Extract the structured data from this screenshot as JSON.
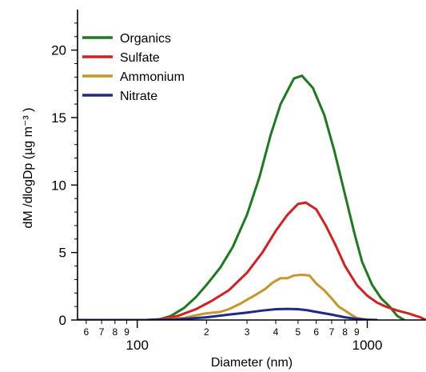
{
  "chart_data": {
    "type": "line",
    "title": "",
    "xlabel": "Diameter (nm)",
    "ylabel": "dM /dlogDp (µg m⁻³ )",
    "xscale": "log",
    "xlim": [
      55,
      1800
    ],
    "ylim": [
      0,
      23
    ],
    "yticks": [
      0,
      5,
      10,
      15,
      20
    ],
    "xticks_major": [
      {
        "value": 100,
        "label": "100"
      },
      {
        "value": 1000,
        "label": "1000"
      }
    ],
    "xticks_minor": [
      {
        "value": 60,
        "label": "6"
      },
      {
        "value": 70,
        "label": "7"
      },
      {
        "value": 80,
        "label": "8"
      },
      {
        "value": 90,
        "label": "9"
      },
      {
        "value": 200,
        "label": "2"
      },
      {
        "value": 300,
        "label": "3"
      },
      {
        "value": 400,
        "label": "4"
      },
      {
        "value": 500,
        "label": "5"
      },
      {
        "value": 600,
        "label": "6"
      },
      {
        "value": 700,
        "label": "7"
      },
      {
        "value": 800,
        "label": "8"
      },
      {
        "value": 900,
        "label": "9"
      }
    ],
    "grid": false,
    "legend_position": "top-left",
    "series": [
      {
        "name": "Organics",
        "color": "#1e7a1e",
        "x": [
          55,
          95,
          110,
          125,
          140,
          160,
          180,
          200,
          230,
          260,
          300,
          340,
          380,
          420,
          460,
          480,
          520,
          580,
          650,
          720,
          800,
          880,
          950,
          1050,
          1150,
          1250,
          1350,
          1450
        ],
        "y": [
          0,
          0,
          0,
          0.05,
          0.3,
          0.9,
          1.7,
          2.6,
          3.9,
          5.4,
          7.8,
          10.6,
          13.7,
          16.0,
          17.3,
          17.9,
          18.1,
          17.2,
          15.2,
          12.5,
          9.3,
          6.4,
          4.3,
          2.6,
          1.6,
          1.0,
          0.3,
          0
        ]
      },
      {
        "name": "Sulfate",
        "color": "#d61f1f",
        "x": [
          55,
          95,
          110,
          125,
          150,
          180,
          210,
          250,
          300,
          350,
          400,
          450,
          500,
          540,
          600,
          660,
          730,
          800,
          900,
          1000,
          1100,
          1200,
          1350,
          1500,
          1700,
          1800
        ],
        "y": [
          0,
          0,
          0,
          0.05,
          0.3,
          0.8,
          1.4,
          2.2,
          3.5,
          5.0,
          6.6,
          7.8,
          8.6,
          8.7,
          8.2,
          7.0,
          5.5,
          4.0,
          2.6,
          1.8,
          1.3,
          1.0,
          0.7,
          0.5,
          0.2,
          0
        ]
      },
      {
        "name": "Ammonium",
        "color": "#c9952a",
        "x": [
          55,
          90,
          120,
          160,
          180,
          200,
          230,
          250,
          280,
          300,
          330,
          360,
          390,
          420,
          450,
          480,
          520,
          560,
          600,
          650,
          700,
          750,
          800,
          850,
          900,
          1000
        ],
        "y": [
          0,
          0,
          0,
          0.15,
          0.35,
          0.5,
          0.6,
          0.8,
          1.2,
          1.5,
          1.9,
          2.3,
          2.8,
          3.1,
          3.1,
          3.3,
          3.35,
          3.3,
          2.7,
          2.2,
          1.6,
          1.0,
          0.7,
          0.4,
          0.15,
          0
        ]
      },
      {
        "name": "Nitrate",
        "color": "#1c2a8c",
        "x": [
          55,
          110,
          150,
          200,
          250,
          300,
          350,
          400,
          450,
          500,
          550,
          600,
          700,
          800,
          900,
          1000,
          1100
        ],
        "y": [
          0,
          0,
          0.05,
          0.2,
          0.4,
          0.55,
          0.7,
          0.8,
          0.82,
          0.8,
          0.72,
          0.6,
          0.4,
          0.2,
          0.08,
          0.02,
          0
        ]
      }
    ]
  }
}
